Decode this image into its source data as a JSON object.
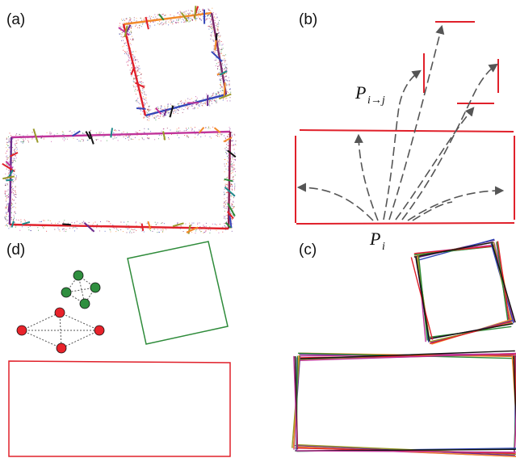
{
  "panels": {
    "a": {
      "label": "(a)"
    },
    "b": {
      "label": "(b)",
      "point_label": "P",
      "point_sub": "i",
      "projected_label": "P",
      "projected_sub": "i→j"
    },
    "c": {
      "label": "(c)"
    },
    "d": {
      "label": "(d)"
    }
  },
  "colors": {
    "red": "#e0202a",
    "green": "#2e8b3a",
    "node_red": "#e8232b",
    "node_green": "#2f8f3f",
    "arrow": "#555555",
    "magenta": "#c0349a",
    "purple": "#6a2c8c",
    "orange": "#f28a2a",
    "blue": "#3346b8",
    "olive": "#9a9a2a"
  }
}
